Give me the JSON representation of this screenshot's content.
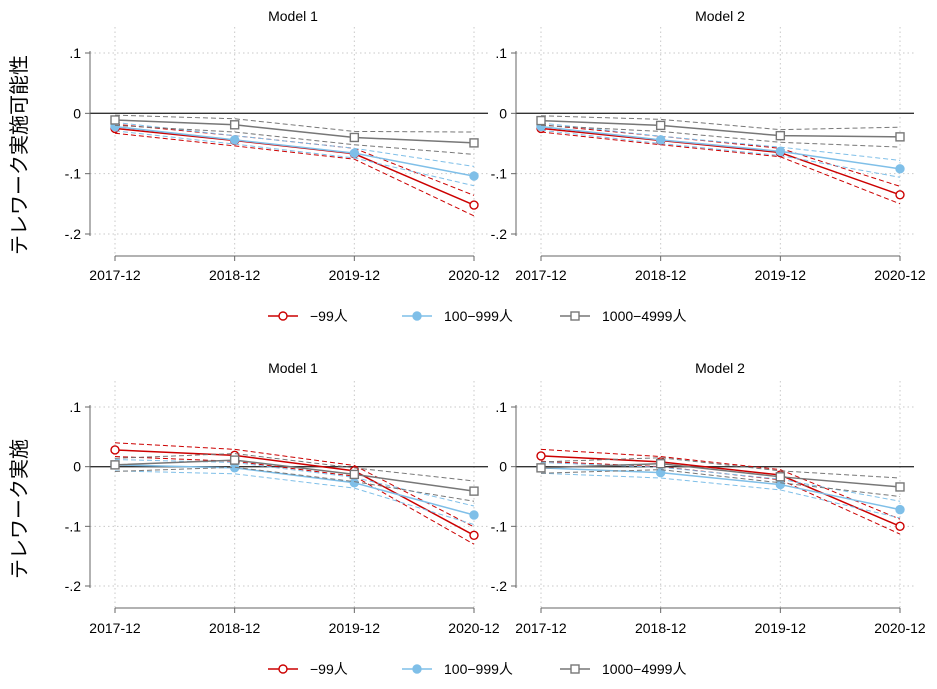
{
  "chart_data": [
    {
      "type": "line",
      "ylabel": "テレワーク実施可能性",
      "x": [
        "2017-12",
        "2018-12",
        "2019-12",
        "2020-12"
      ],
      "ylim": [
        -0.2,
        0.1
      ],
      "yticks": [
        ".1",
        "0",
        "-.1",
        "-.2"
      ],
      "panels": [
        {
          "title": "Model 1",
          "series": [
            {
              "name": "−99人",
              "values": [
                -0.025,
                -0.045,
                -0.067,
                -0.152
              ],
              "ci_low": [
                -0.033,
                -0.054,
                -0.076,
                -0.17
              ],
              "ci_high": [
                -0.018,
                -0.037,
                -0.058,
                -0.136
              ]
            },
            {
              "name": "100−999人",
              "values": [
                -0.022,
                -0.044,
                -0.066,
                -0.104
              ],
              "ci_low": [
                -0.029,
                -0.051,
                -0.074,
                -0.12
              ],
              "ci_high": [
                -0.015,
                -0.037,
                -0.058,
                -0.088
              ]
            },
            {
              "name": "1000−4999人",
              "values": [
                -0.011,
                -0.019,
                -0.04,
                -0.049
              ],
              "ci_low": [
                -0.02,
                -0.031,
                -0.052,
                -0.068
              ],
              "ci_high": [
                -0.003,
                -0.009,
                -0.03,
                -0.031
              ]
            }
          ]
        },
        {
          "title": "Model 2",
          "series": [
            {
              "name": "−99人",
              "values": [
                -0.025,
                -0.045,
                -0.065,
                -0.135
              ],
              "ci_low": [
                -0.031,
                -0.052,
                -0.072,
                -0.15
              ],
              "ci_high": [
                -0.019,
                -0.038,
                -0.058,
                -0.121
              ]
            },
            {
              "name": "100−999人",
              "values": [
                -0.022,
                -0.044,
                -0.063,
                -0.092
              ],
              "ci_low": [
                -0.028,
                -0.05,
                -0.07,
                -0.106
              ],
              "ci_high": [
                -0.016,
                -0.038,
                -0.056,
                -0.078
              ]
            },
            {
              "name": "1000−4999人",
              "values": [
                -0.012,
                -0.02,
                -0.037,
                -0.039
              ],
              "ci_low": [
                -0.02,
                -0.03,
                -0.048,
                -0.056
              ],
              "ci_high": [
                -0.004,
                -0.01,
                -0.027,
                -0.023
              ]
            }
          ]
        }
      ],
      "legend": [
        "−99人",
        "100−999人",
        "1000−4999人"
      ]
    },
    {
      "type": "line",
      "ylabel": "テレワーク実施",
      "x": [
        "2017-12",
        "2018-12",
        "2019-12",
        "2020-12"
      ],
      "ylim": [
        -0.2,
        0.1
      ],
      "yticks": [
        ".1",
        "0",
        "-.1",
        "-.2"
      ],
      "panels": [
        {
          "title": "Model 1",
          "series": [
            {
              "name": "−99人",
              "values": [
                0.028,
                0.019,
                -0.007,
                -0.115
              ],
              "ci_low": [
                0.017,
                0.009,
                -0.016,
                -0.13
              ],
              "ci_high": [
                0.04,
                0.029,
                0.002,
                -0.101
              ]
            },
            {
              "name": "100−999人",
              "values": [
                0.003,
                -0.002,
                -0.027,
                -0.081
              ],
              "ci_low": [
                -0.007,
                -0.012,
                -0.036,
                -0.097
              ],
              "ci_high": [
                0.012,
                0.007,
                -0.018,
                -0.066
              ]
            },
            {
              "name": "1000−4999人",
              "values": [
                0.003,
                0.011,
                -0.013,
                -0.041
              ],
              "ci_low": [
                -0.008,
                -0.001,
                -0.025,
                -0.058
              ],
              "ci_high": [
                0.014,
                0.022,
                -0.002,
                -0.024
              ]
            }
          ]
        },
        {
          "title": "Model 2",
          "series": [
            {
              "name": "−99人",
              "values": [
                0.018,
                0.008,
                -0.014,
                -0.1
              ],
              "ci_low": [
                0.009,
                0.0,
                -0.022,
                -0.113
              ],
              "ci_high": [
                0.029,
                0.017,
                -0.005,
                -0.088
              ]
            },
            {
              "name": "100−999人",
              "values": [
                -0.002,
                -0.01,
                -0.03,
                -0.072
              ],
              "ci_low": [
                -0.011,
                -0.019,
                -0.039,
                -0.086
              ],
              "ci_high": [
                0.007,
                -0.001,
                -0.021,
                -0.058
              ]
            },
            {
              "name": "1000−4999人",
              "values": [
                -0.002,
                0.005,
                -0.017,
                -0.034
              ],
              "ci_low": [
                -0.011,
                -0.005,
                -0.027,
                -0.05
              ],
              "ci_high": [
                0.008,
                0.015,
                -0.007,
                -0.019
              ]
            }
          ]
        }
      ],
      "legend": [
        "−99人",
        "100−999人",
        "1000−4999人"
      ]
    }
  ],
  "colors": {
    "small": "#cc0000",
    "medium": "#7fbfe8",
    "large": "#777777",
    "zero_line": "#333333",
    "grid": "#c8c8c8",
    "axis": "#666666"
  },
  "markers": [
    "hollow-circle",
    "filled-circle",
    "hollow-square"
  ]
}
